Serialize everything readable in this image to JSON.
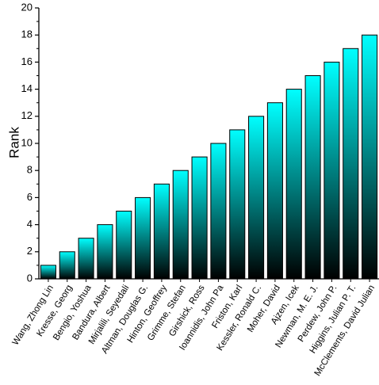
{
  "chart_data": {
    "type": "bar",
    "title": "",
    "xlabel": "",
    "ylabel": "Rank",
    "ylim": [
      0,
      20
    ],
    "yticks": [
      0,
      2,
      4,
      6,
      8,
      10,
      12,
      14,
      16,
      18,
      20
    ],
    "grid": false,
    "legend": "none",
    "bar_gradient": {
      "top": "#00ffff",
      "bottom": "#000000"
    },
    "bar_edge_color": "#000000",
    "categories": [
      "Wang, Zhong Lin",
      "Kresse, Georg",
      "Bengio, Yoshua",
      "Bandura, Albert",
      "Mirjalili, Seyedali",
      "Altman, Douglas G.",
      "Hinton, Geoffrey",
      "Grimme, Stefan",
      "Girshick, Ross",
      "Ioannidis, John Pa",
      "Friston, Karl",
      "Kessler, Ronald C.",
      "Moher, David",
      "Ajzen, Icek",
      "Newman, M. E. J.",
      "Perdew, John P.",
      "Higgins, Julian P. T.",
      "McClements, David Julian"
    ],
    "values": [
      1,
      2,
      3,
      4,
      5,
      6,
      7,
      8,
      9,
      10,
      11,
      12,
      13,
      14,
      15,
      16,
      17,
      18
    ]
  }
}
